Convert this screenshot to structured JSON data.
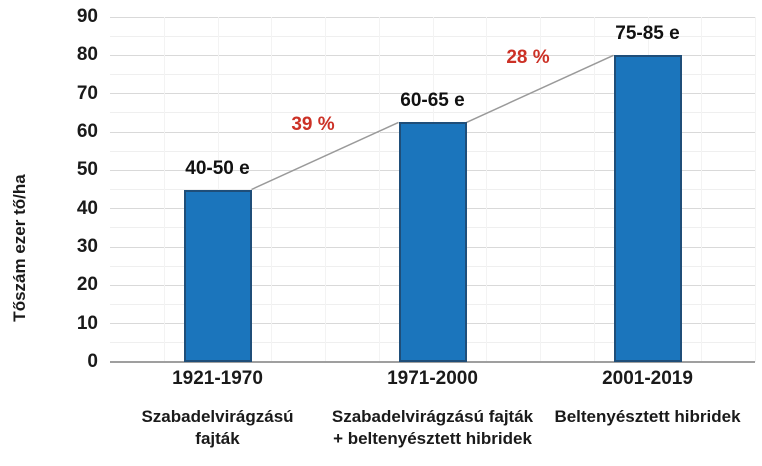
{
  "chart_data": {
    "type": "bar",
    "title": "",
    "xlabel": "",
    "ylabel": "Tőszám ezer tő/ha",
    "ylim": [
      0,
      90
    ],
    "ytick_step": 10,
    "yticks": [
      0,
      10,
      20,
      30,
      40,
      50,
      60,
      70,
      80,
      90
    ],
    "grid": "major and minor horizontal, faint vertical",
    "legend": "none",
    "categories": [
      {
        "period": "1921-1970",
        "description_lines": [
          "Szabadelvirágzású",
          "fajták"
        ],
        "description": "Szabadelvirágzású fajták",
        "value_label": "40-50 e",
        "value_range": [
          40,
          50
        ],
        "value": 45
      },
      {
        "period": "1971-2000",
        "description_lines": [
          "Szabadelvirágzású fajták",
          "+ beltenyésztett hibridek"
        ],
        "description": "Szabadelvirágzású fajták + beltenyésztett hibridek",
        "value_label": "60-65 e",
        "value_range": [
          60,
          65
        ],
        "value": 62.5
      },
      {
        "period": "2001-2019",
        "description_lines": [
          "Beltenyésztett hibridek"
        ],
        "description": "Beltenyésztett hibridek",
        "value_label": "75-85 e",
        "value_range": [
          75,
          85
        ],
        "value": 80
      }
    ],
    "growth_annotations": [
      {
        "label": "39 %",
        "between": [
          0,
          1
        ]
      },
      {
        "label": "28 %",
        "between": [
          1,
          2
        ]
      }
    ],
    "colors": {
      "bar_fill": "#1b75bc",
      "bar_border": "#1f4e79",
      "annotation_red": "#cc3126",
      "gridline_major": "#d9d9d9",
      "gridline_minor": "#efefef",
      "gridline_vertical": "#f3f3f3",
      "axis_line": "#9f9f9f",
      "connector_line": "#9a9a9a",
      "text": "#1a1a1a"
    }
  }
}
